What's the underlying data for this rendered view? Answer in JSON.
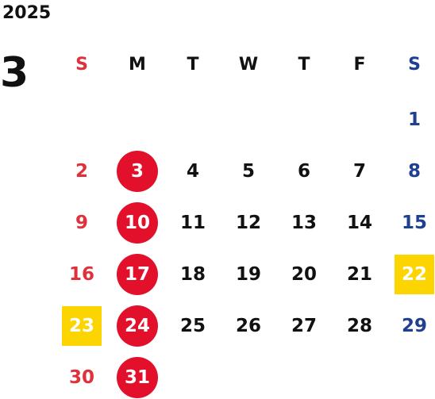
{
  "calendar": {
    "year": "2025",
    "month": "3",
    "weekdays": [
      "S",
      "M",
      "T",
      "W",
      "T",
      "F",
      "S"
    ],
    "colors": {
      "sunday_text": "#e0303a",
      "saturday_text": "#1f3f8f",
      "closed_circle": "#e3102c",
      "holiday_highlight": "#fcd400"
    },
    "days": {
      "d1": "1",
      "d2": "2",
      "d3": "3",
      "d4": "4",
      "d5": "5",
      "d6": "6",
      "d7": "7",
      "d8": "8",
      "d9": "9",
      "d10": "10",
      "d11": "11",
      "d12": "12",
      "d13": "13",
      "d14": "14",
      "d15": "15",
      "d16": "16",
      "d17": "17",
      "d18": "18",
      "d19": "19",
      "d20": "20",
      "d21": "21",
      "d22": "22",
      "d23": "23",
      "d24": "24",
      "d25": "25",
      "d26": "26",
      "d27": "27",
      "d28": "28",
      "d29": "29",
      "d30": "30",
      "d31": "31"
    }
  }
}
